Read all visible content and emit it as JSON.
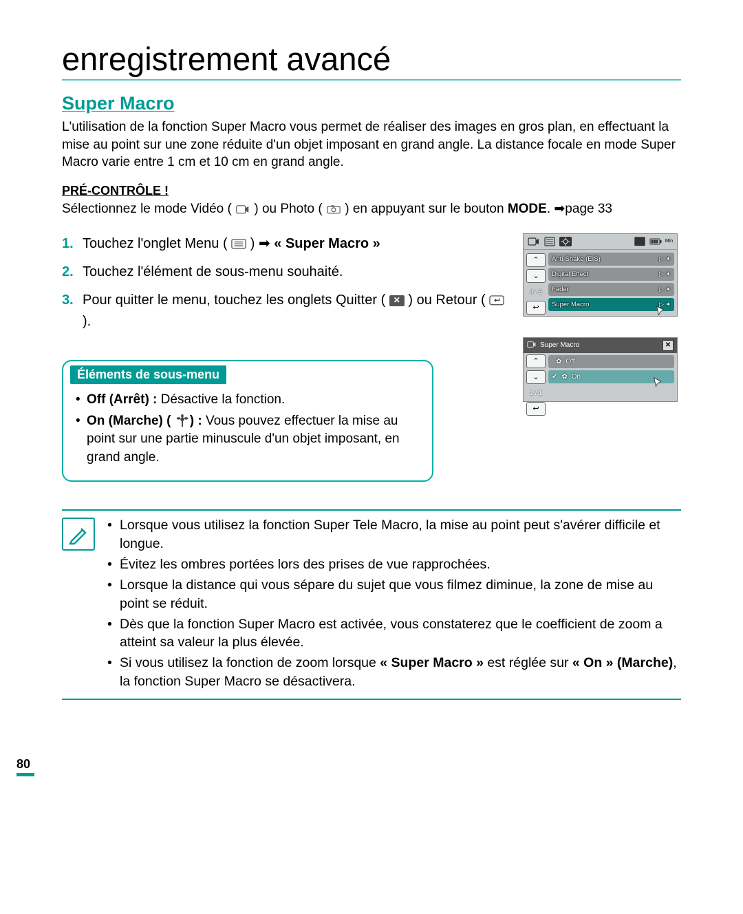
{
  "colors": {
    "accent": "#009b95",
    "accent_light": "#4fc9c3",
    "screen_bg": "#c8ccce",
    "row_bg": "#8f9394",
    "row_sel": "#0a7c78"
  },
  "page_number": "80",
  "chapter_title": "enregistrement avancé",
  "section_title": "Super Macro",
  "intro": "L'utilisation de la fonction Super Macro vous permet de réaliser des images en gros plan, en effectuant la mise au point sur une zone réduite d'un objet imposant en grand angle. La distance focale en mode Super Macro varie entre 1 cm et 10 cm en grand angle.",
  "precheck": {
    "heading": "PRÉ-CONTRÔLE !",
    "line_pre": "Sélectionnez le mode Vidéo (",
    "line_mid": ") ou Photo (",
    "line_post1": ") en appuyant sur le bouton ",
    "mode": "MODE",
    "line_post2": ". ➡page 33"
  },
  "steps": {
    "s1_pre": "Touchez l'onglet Menu (",
    "s1_post": ") ➡ ",
    "s1_bold": "« Super Macro »",
    "s2": "Touchez l'élément de sous-menu souhaité.",
    "s3_pre": "Pour quitter le menu, touchez les onglets Quitter (",
    "s3_mid": ") ou Retour (",
    "s3_post": ")."
  },
  "submenu": {
    "header": "Éléments de sous-menu",
    "off_bold": "Off (Arrêt) :",
    "off_rest": " Désactive la fonction.",
    "on_bold": "On (Marche) (",
    "on_bold2": ") :",
    "on_rest": " Vous pouvez effectuer la mise au point sur une partie minuscule d'un objet imposant, en grand angle."
  },
  "notes": {
    "n1": "Lorsque vous utilisez la fonction Super Tele Macro, la mise au point peut s'avérer difficile et longue.",
    "n2": "Évitez les ombres portées lors des prises de vue rapprochées.",
    "n3": "Lorsque la distance qui vous sépare du sujet que vous filmez diminue, la zone de mise au point se réduit.",
    "n4": "Dès que la fonction Super Macro est activée, vous constaterez que le coefficient de zoom a atteint sa valeur la plus élevée.",
    "n5_pre": "Si vous utilisez la fonction de zoom lorsque ",
    "n5_b1": "« Super Macro »",
    "n5_mid": " est réglée sur ",
    "n5_b2": "« On » (Marche)",
    "n5_post": ", la fonction Super Macro se désactivera."
  },
  "screen1": {
    "page_indicator": "4 / 6",
    "rows": [
      {
        "label": "Anti-Shake (EIS)"
      },
      {
        "label": "Digital Effect"
      },
      {
        "label": "Fader"
      },
      {
        "label": "Super Macro",
        "selected": true
      }
    ]
  },
  "screen2": {
    "title": "Super Macro",
    "page_indicator": "1 / 1",
    "options": [
      {
        "label": "Off"
      },
      {
        "label": "On",
        "selected": true
      }
    ]
  }
}
